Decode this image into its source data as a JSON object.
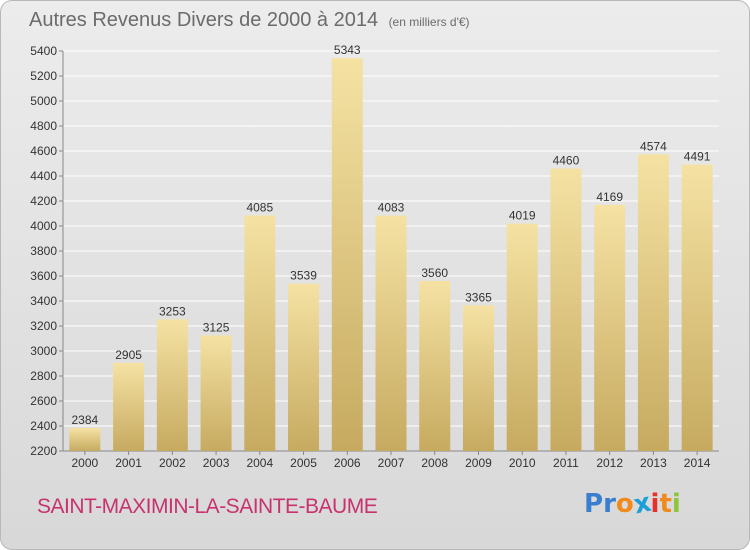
{
  "title": "Autres Revenus Divers de 2000 à 2014",
  "subtitle": "(en milliers d'€)",
  "commune": "SAINT-MAXIMIN-LA-SAINTE-BAUME",
  "logo": {
    "text": "Proxiti",
    "letter_colors": [
      "#3a7fcf",
      "#3a7fcf",
      "#f18a1c",
      "#1a9fd9",
      "#e8312a",
      "#f18a1c",
      "#8cc63e"
    ]
  },
  "colors": {
    "bar_light": "#f5e2a3",
    "bar_dark": "#c6aa60",
    "grid": "#ffffff",
    "text": "#333333",
    "commune": "#c8326e"
  },
  "chart_data": {
    "type": "bar",
    "title": "Autres Revenus Divers de 2000 à 2014",
    "subtitle": "(en milliers d'€)",
    "categories": [
      "2000",
      "2001",
      "2002",
      "2003",
      "2004",
      "2005",
      "2006",
      "2007",
      "2008",
      "2009",
      "2010",
      "2011",
      "2012",
      "2013",
      "2014"
    ],
    "values": [
      2384,
      2905,
      3253,
      3125,
      4085,
      3539,
      5343,
      4083,
      3560,
      3365,
      4019,
      4460,
      4169,
      4574,
      4491
    ],
    "ylim": [
      2200,
      5400
    ],
    "yticks": [
      2200,
      2400,
      2600,
      2800,
      3000,
      3200,
      3400,
      3600,
      3800,
      4000,
      4200,
      4400,
      4600,
      4800,
      5000,
      5200,
      5400
    ],
    "grid": true,
    "xlabel": "",
    "ylabel": ""
  }
}
